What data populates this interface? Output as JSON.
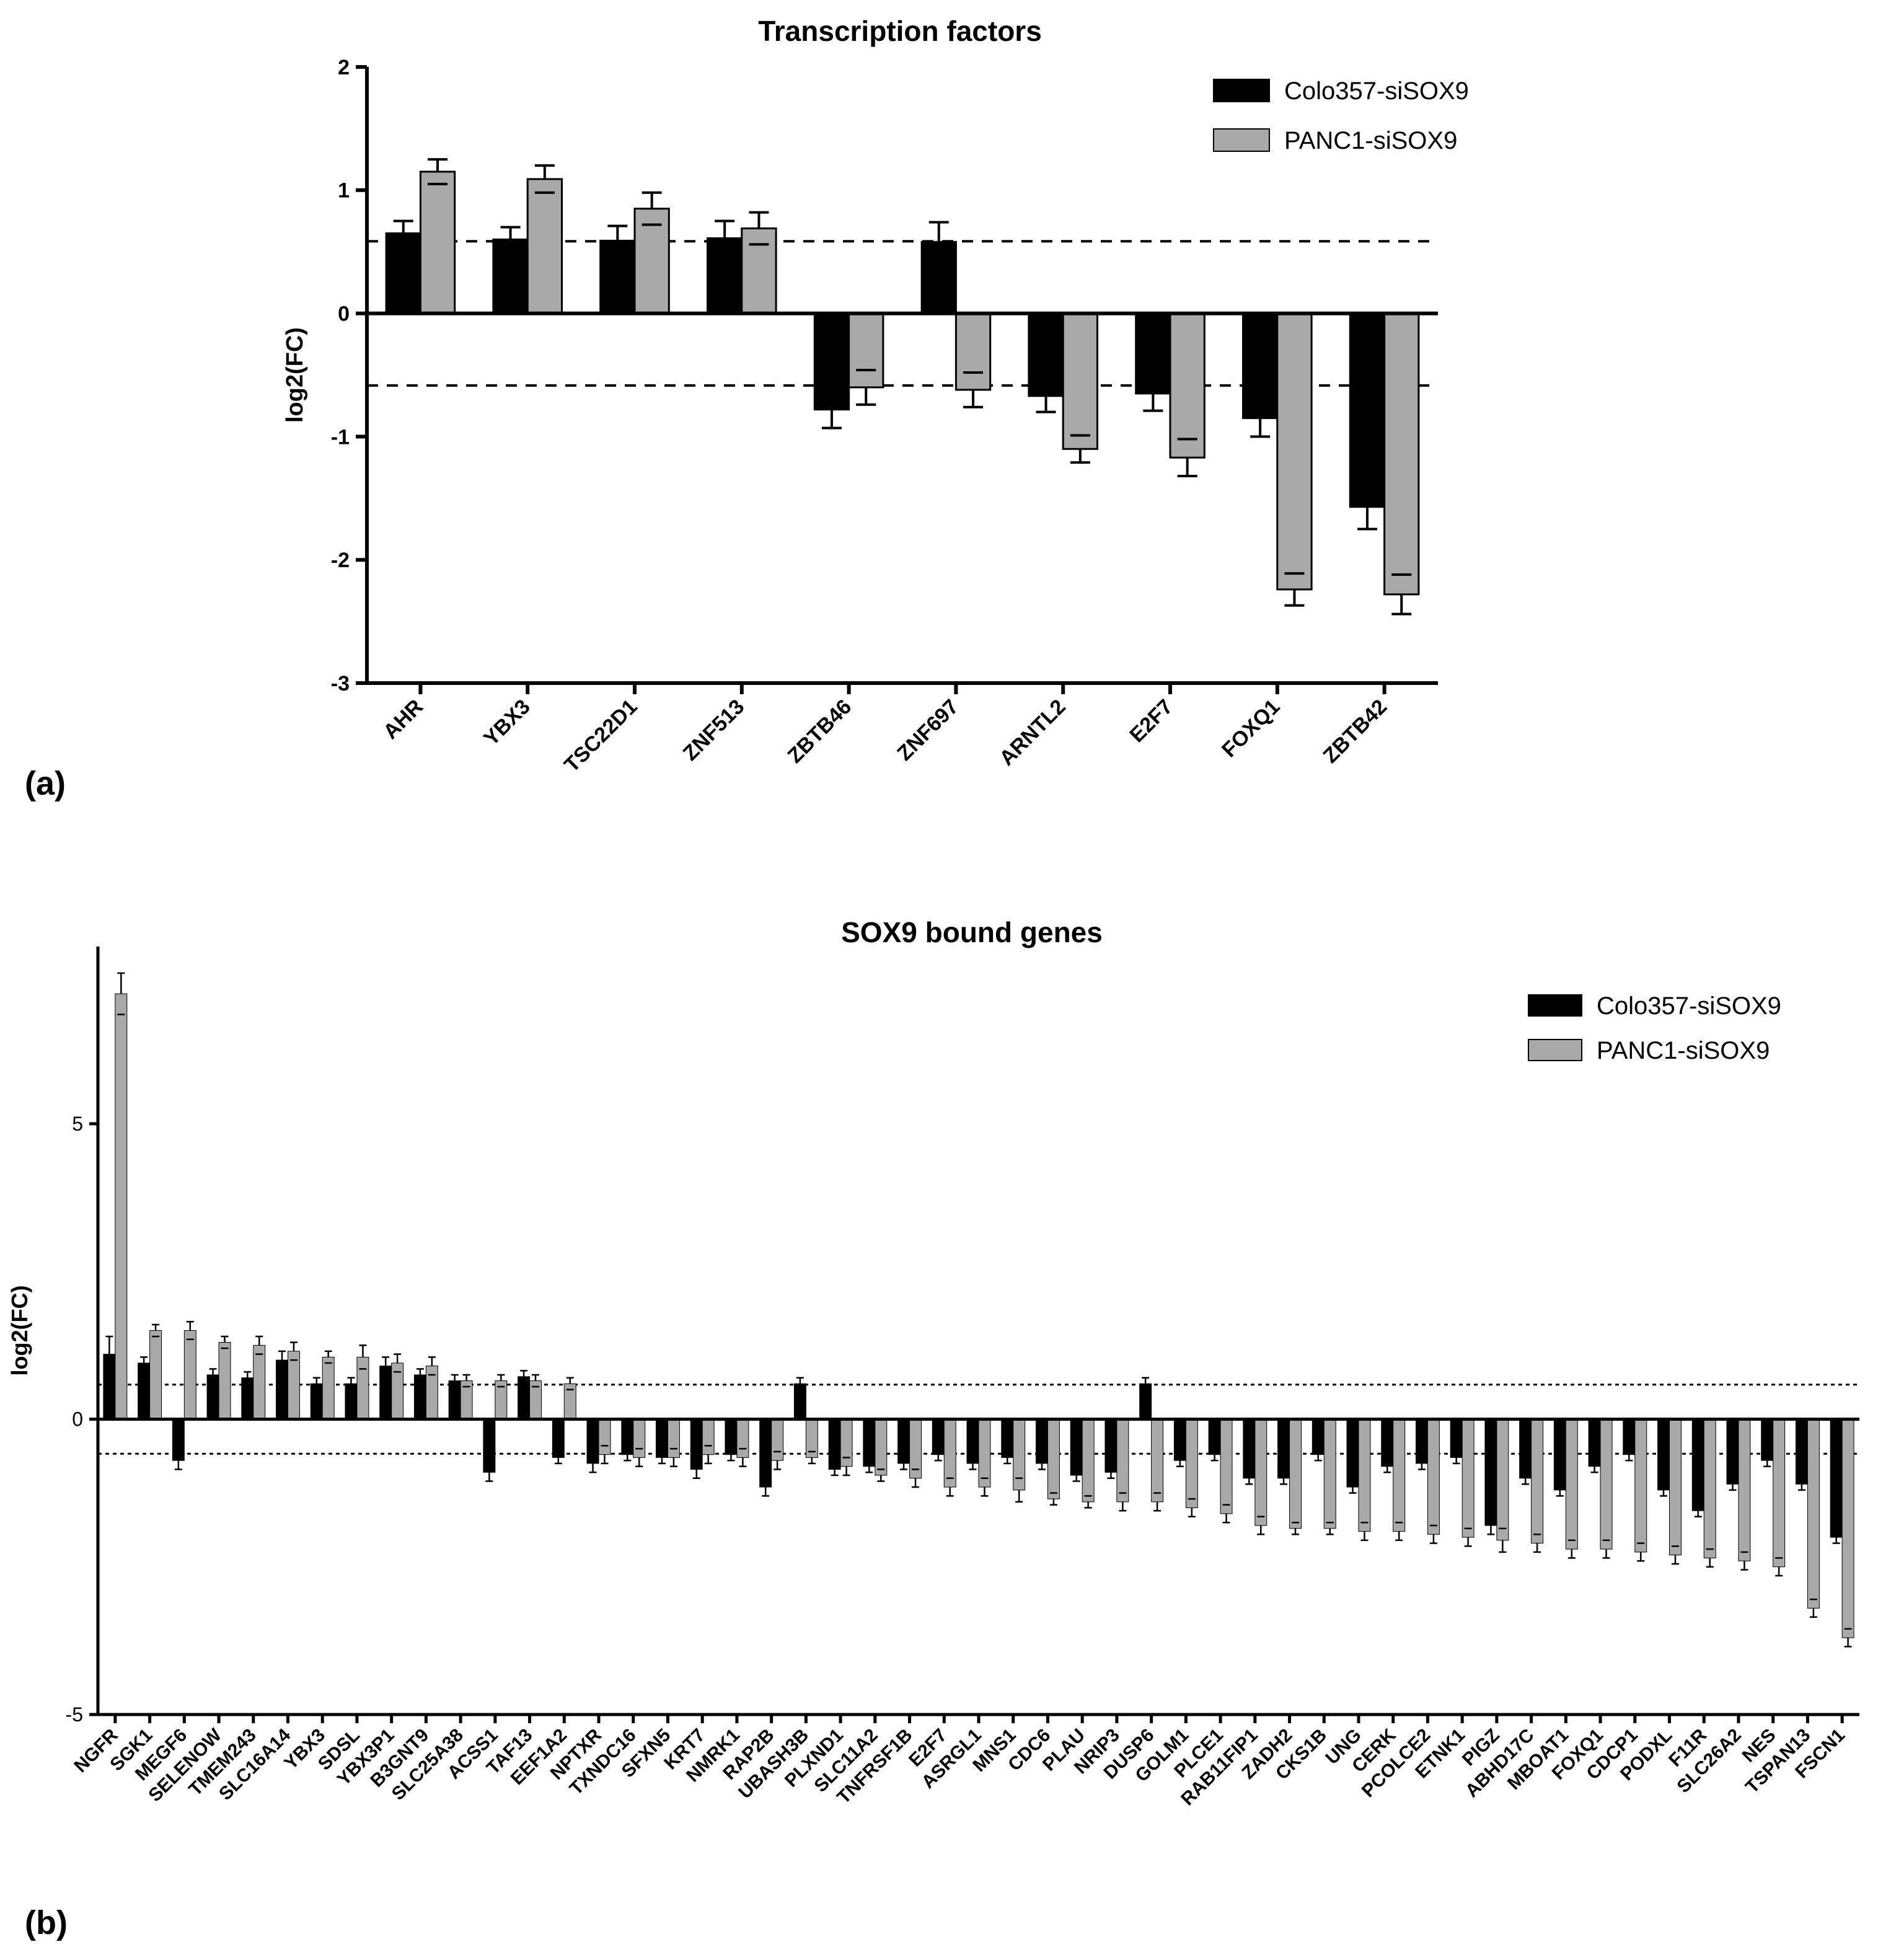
{
  "panel_labels": {
    "a": "(a)",
    "b": "(b)"
  },
  "colors": {
    "series1": "#000000",
    "series2": "#a9a9a9",
    "axis": "#000000",
    "threshold": "#000000"
  },
  "chart_data": [
    {
      "type": "bar",
      "title": "Transcription factors",
      "xlabel": "",
      "ylabel": "log2(FC)",
      "ylim": [
        -3,
        2
      ],
      "yticks": [
        2,
        1,
        0,
        -1,
        -2,
        -3
      ],
      "threshold_lines": [
        0.585,
        -0.585
      ],
      "legend_position": "top-right",
      "categories": [
        "AHR",
        "YBX3",
        "TSC22D1",
        "ZNF513",
        "ZBTB46",
        "ZNF697",
        "ARNTL2",
        "E2F7",
        "FOXQ1",
        "ZBTB42"
      ],
      "series": [
        {
          "name": "Colo357-siSOX9",
          "values": [
            0.65,
            0.6,
            0.59,
            0.61,
            -0.78,
            0.58,
            -0.67,
            -0.65,
            -0.85,
            -1.57
          ],
          "errors": [
            0.1,
            0.1,
            0.12,
            0.14,
            0.15,
            0.16,
            0.13,
            0.14,
            0.15,
            0.18
          ]
        },
        {
          "name": "PANC1-siSOX9",
          "values": [
            1.15,
            1.09,
            0.85,
            0.69,
            -0.6,
            -0.62,
            -1.1,
            -1.17,
            -2.24,
            -2.28
          ],
          "errors": [
            0.1,
            0.11,
            0.13,
            0.13,
            0.14,
            0.14,
            0.11,
            0.15,
            0.13,
            0.16
          ]
        }
      ]
    },
    {
      "type": "bar",
      "title": "SOX9 bound genes",
      "xlabel": "",
      "ylabel": "log2(FC)",
      "ylim": [
        -5,
        8
      ],
      "yticks": [
        5,
        0,
        -5
      ],
      "threshold_lines": [
        0.585,
        -0.585
      ],
      "legend_position": "top-right",
      "categories": [
        "NGFR",
        "SGK1",
        "MEGF6",
        "SELENOW",
        "TMEM243",
        "SLC16A14",
        "YBX3",
        "SDSL",
        "YBX3P1",
        "B3GNT9",
        "SLC25A38",
        "ACSS1",
        "TAF13",
        "EEF1A2",
        "NPTXR",
        "TXNDC16",
        "SFXN5",
        "KRT7",
        "NMRK1",
        "RAP2B",
        "UBASH3B",
        "PLXND1",
        "SLC11A2",
        "TNFRSF1B",
        "E2F7",
        "ASRGL1",
        "MNS1",
        "CDC6",
        "PLAU",
        "NRIP3",
        "DUSP6",
        "GOLM1",
        "PLCE1",
        "RAB11FIP1",
        "ZADH2",
        "CKS1B",
        "UNG",
        "CERK",
        "PCOLCE2",
        "ETNK1",
        "PIGZ",
        "ABHD17C",
        "MBOAT1",
        "FOXQ1",
        "CDCP1",
        "PODXL",
        "F11R",
        "SLC26A2",
        "NES",
        "TSPAN13",
        "FSCN1"
      ],
      "series": [
        {
          "name": "Colo357-siSOX9",
          "values": [
            1.1,
            0.95,
            -0.7,
            0.75,
            0.7,
            1.0,
            0.6,
            0.6,
            0.9,
            0.75,
            0.65,
            -0.9,
            0.72,
            -0.65,
            -0.75,
            -0.6,
            -0.65,
            -0.85,
            -0.6,
            -1.15,
            0.6,
            -0.85,
            -0.8,
            -0.75,
            -0.6,
            -0.75,
            -0.65,
            -0.75,
            -0.95,
            -0.9,
            0.6,
            -0.7,
            -0.6,
            -1.0,
            -1.0,
            -0.6,
            -1.15,
            -0.8,
            -0.75,
            -0.65,
            -1.8,
            -1.0,
            -1.2,
            -0.8,
            -0.6,
            -1.2,
            -1.55,
            -1.1,
            -0.7,
            -1.1,
            -2.0
          ],
          "errors": [
            0.3,
            0.1,
            0.15,
            0.1,
            0.1,
            0.15,
            0.1,
            0.1,
            0.15,
            0.1,
            0.1,
            0.15,
            0.1,
            0.1,
            0.15,
            0.1,
            0.1,
            0.15,
            0.1,
            0.15,
            0.1,
            0.1,
            0.1,
            0.1,
            0.1,
            0.1,
            0.1,
            0.1,
            0.1,
            0.1,
            0.1,
            0.1,
            0.1,
            0.1,
            0.1,
            0.1,
            0.1,
            0.1,
            0.1,
            0.1,
            0.15,
            0.1,
            0.1,
            0.1,
            0.1,
            0.1,
            0.1,
            0.1,
            0.1,
            0.1,
            0.1
          ]
        },
        {
          "name": "PANC1-siSOX9",
          "values": [
            7.2,
            1.5,
            1.5,
            1.3,
            1.25,
            1.15,
            1.05,
            1.05,
            0.95,
            0.9,
            0.65,
            0.65,
            0.65,
            0.6,
            -0.6,
            -0.65,
            -0.65,
            -0.6,
            -0.65,
            -0.7,
            -0.65,
            -0.8,
            -0.95,
            -1.0,
            -1.15,
            -1.15,
            -1.2,
            -1.35,
            -1.4,
            -1.4,
            -1.4,
            -1.5,
            -1.6,
            -1.8,
            -1.85,
            -1.85,
            -1.9,
            -1.9,
            -1.95,
            -2.0,
            -2.05,
            -2.1,
            -2.2,
            -2.2,
            -2.25,
            -2.3,
            -2.35,
            -2.4,
            -2.5,
            -3.2,
            -3.7
          ],
          "errors": [
            0.35,
            0.1,
            0.15,
            0.1,
            0.15,
            0.15,
            0.1,
            0.2,
            0.15,
            0.15,
            0.1,
            0.1,
            0.1,
            0.1,
            0.15,
            0.15,
            0.15,
            0.15,
            0.15,
            0.15,
            0.1,
            0.15,
            0.1,
            0.15,
            0.15,
            0.15,
            0.2,
            0.1,
            0.1,
            0.15,
            0.15,
            0.15,
            0.15,
            0.15,
            0.1,
            0.1,
            0.15,
            0.15,
            0.15,
            0.15,
            0.2,
            0.15,
            0.15,
            0.15,
            0.15,
            0.15,
            0.15,
            0.15,
            0.15,
            0.15,
            0.15
          ]
        }
      ]
    }
  ]
}
